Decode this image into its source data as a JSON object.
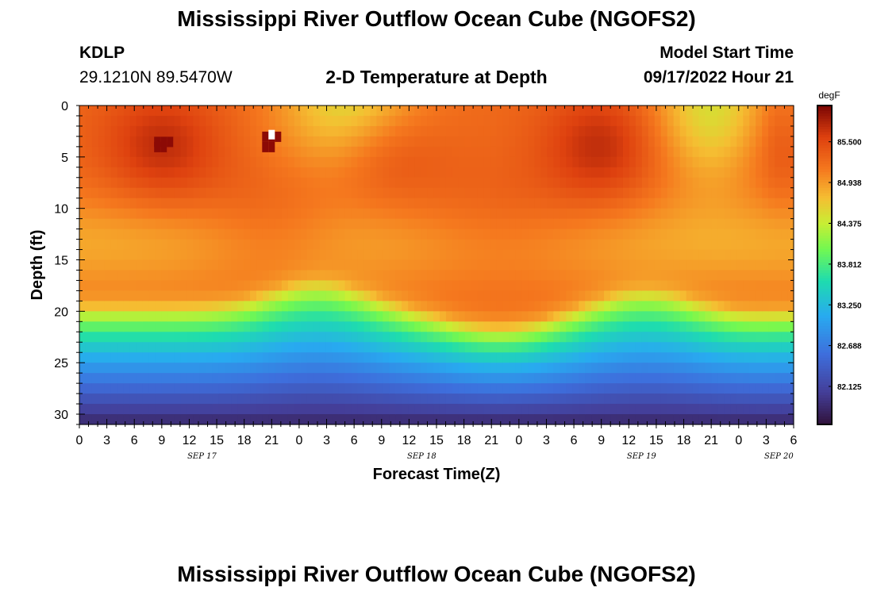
{
  "page": {
    "title_top": "Mississippi River Outflow Ocean Cube (NGOFS2)",
    "title_bottom": "Mississippi River Outflow Ocean Cube (NGOFS2)",
    "station_id": "KDLP",
    "station_coords": "29.1210N  89.5470W",
    "plot_subtitle": "2-D Temperature at Depth",
    "model_start_label": "Model Start Time",
    "model_start_value": "09/17/2022 Hour 21"
  },
  "chart_data": {
    "type": "heatmap",
    "title": "2-D Temperature at Depth",
    "xlabel": "Forecast Time(Z)",
    "ylabel": "Depth (ft)",
    "x_hours_range": [
      0,
      78
    ],
    "x_ticks": [
      {
        "h": 0,
        "label": "0"
      },
      {
        "h": 3,
        "label": "3"
      },
      {
        "h": 6,
        "label": "6"
      },
      {
        "h": 9,
        "label": "9"
      },
      {
        "h": 12,
        "label": "12"
      },
      {
        "h": 15,
        "label": "15"
      },
      {
        "h": 18,
        "label": "18"
      },
      {
        "h": 21,
        "label": "21"
      },
      {
        "h": 24,
        "label": "0"
      },
      {
        "h": 27,
        "label": "3"
      },
      {
        "h": 30,
        "label": "6"
      },
      {
        "h": 33,
        "label": "9"
      },
      {
        "h": 36,
        "label": "12"
      },
      {
        "h": 39,
        "label": "15"
      },
      {
        "h": 42,
        "label": "18"
      },
      {
        "h": 45,
        "label": "21"
      },
      {
        "h": 48,
        "label": "0"
      },
      {
        "h": 51,
        "label": "3"
      },
      {
        "h": 54,
        "label": "6"
      },
      {
        "h": 57,
        "label": "9"
      },
      {
        "h": 60,
        "label": "12"
      },
      {
        "h": 63,
        "label": "15"
      },
      {
        "h": 66,
        "label": "18"
      },
      {
        "h": 69,
        "label": "21"
      },
      {
        "h": 72,
        "label": "0"
      },
      {
        "h": 75,
        "label": "3"
      },
      {
        "h": 78,
        "label": "6"
      }
    ],
    "date_labels": [
      {
        "h": 12,
        "label": "SEP 17"
      },
      {
        "h": 36,
        "label": "SEP 18"
      },
      {
        "h": 60,
        "label": "SEP 19"
      },
      {
        "h": 75,
        "label": "SEP 20"
      }
    ],
    "y_range": [
      0,
      31
    ],
    "y_ticks": [
      0,
      5,
      10,
      15,
      20,
      25,
      30
    ],
    "colorbar": {
      "unit": "degF",
      "range": [
        81.6,
        86.0
      ],
      "ticks": [
        "85.500",
        "84.938",
        "84.375",
        "83.812",
        "83.250",
        "82.688",
        "82.125"
      ]
    },
    "field_description_degF": {
      "upper_layer_0_to_18ft": "84.5 - 85.9, warmest near 3-5 ft around hours 9 and 21",
      "cool_pockets_surface": "about 84.4 near hours 30 and 69",
      "thermocline_19_to_25ft": "84.6 dropping to 83.5",
      "bottom_28_to_31ft": "about 81.7 - 82.2"
    }
  }
}
